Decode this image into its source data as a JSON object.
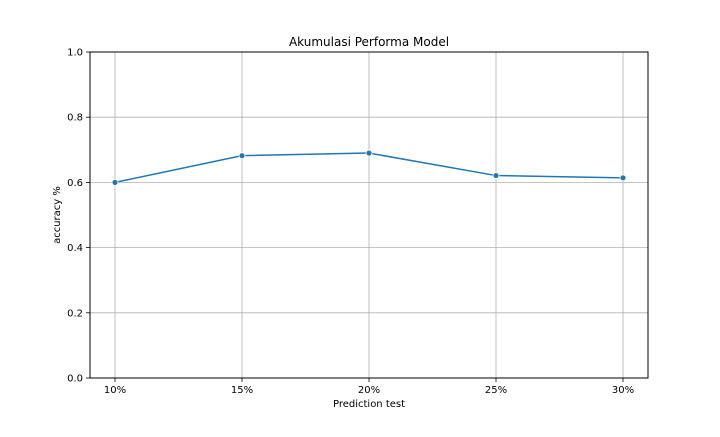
{
  "chart_data": {
    "type": "line",
    "title": "Akumulasi Performa Model",
    "xlabel": "Prediction test",
    "ylabel": "accuracy %",
    "categories": [
      "10%",
      "15%",
      "20%",
      "25%",
      "30%"
    ],
    "series": [
      {
        "values": [
          0.6,
          0.682,
          0.69,
          0.621,
          0.614
        ]
      }
    ],
    "ylim": [
      0.0,
      1.0
    ],
    "yticks": [
      "0.0",
      "0.2",
      "0.4",
      "0.6",
      "0.8",
      "1.0"
    ],
    "grid": true,
    "markers": true,
    "legend": "none",
    "colors": {
      "line": "#1f77b4",
      "grid": "#b0b0b0",
      "axes": "#000000"
    }
  }
}
